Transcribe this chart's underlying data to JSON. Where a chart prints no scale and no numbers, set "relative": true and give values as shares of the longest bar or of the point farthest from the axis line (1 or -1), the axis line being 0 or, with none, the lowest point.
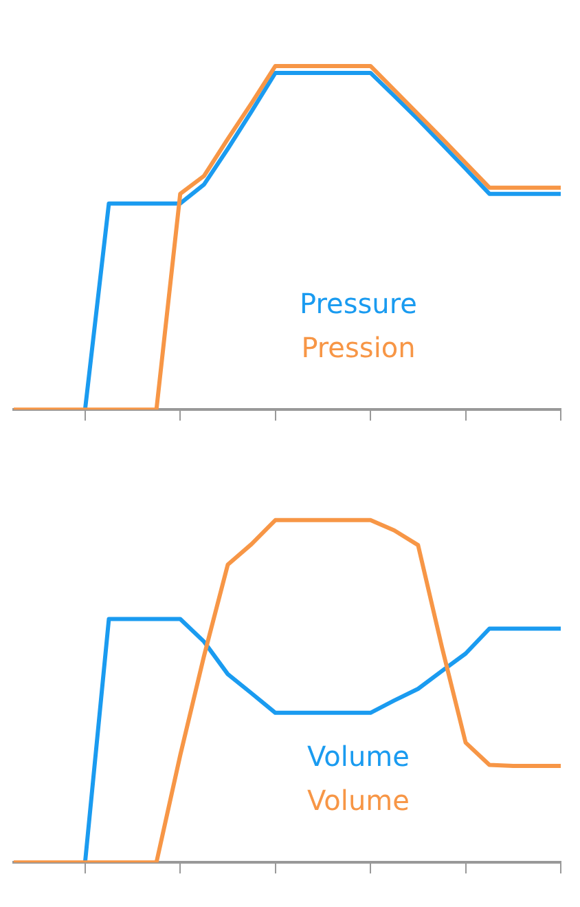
{
  "chart_data": [
    {
      "type": "line",
      "relative": true,
      "categories": [
        null,
        null,
        null,
        null,
        null,
        null,
        null,
        null,
        null,
        null,
        null,
        null,
        null,
        null,
        null,
        null,
        null,
        null,
        null,
        null,
        null,
        null,
        null,
        null
      ],
      "series": [
        {
          "name": "Pressure",
          "color": "#1a9bf0",
          "values": [
            null,
            null,
            null,
            0,
            0.6,
            0.6,
            0.6,
            0.6,
            0.655,
            0.759,
            0.868,
            0.98,
            0.98,
            0.98,
            0.98,
            0.98,
            0.913,
            0.845,
            0.773,
            0.701,
            0.628,
            0.628,
            0.628,
            0.628
          ]
        },
        {
          "name": "Pression",
          "color": "#f79646",
          "values": [
            0,
            0,
            0,
            0,
            0,
            0,
            0,
            0.628,
            0.68,
            0.788,
            0.892,
            1,
            1,
            1,
            1,
            1,
            0.93,
            0.86,
            0.79,
            0.718,
            0.646,
            0.646,
            0.646,
            0.646
          ]
        }
      ]
    },
    {
      "type": "line",
      "relative": true,
      "categories": [
        null,
        null,
        null,
        null,
        null,
        null,
        null,
        null,
        null,
        null,
        null,
        null,
        null,
        null,
        null,
        null,
        null,
        null,
        null,
        null,
        null,
        null,
        null,
        null
      ],
      "series": [
        {
          "name": "Volume",
          "color": "#1a9bf0",
          "values": [
            null,
            null,
            null,
            0,
            0.711,
            0.711,
            0.711,
            0.711,
            0.645,
            0.55,
            0.494,
            0.437,
            0.437,
            0.437,
            0.437,
            0.437,
            0.473,
            0.507,
            0.559,
            0.61,
            0.683,
            0.683,
            0.683,
            0.683
          ]
        },
        {
          "name": "Volume",
          "color": "#f79646",
          "values": [
            0,
            0,
            0,
            0,
            0,
            0,
            0,
            0.313,
            0.603,
            0.87,
            0.93,
            1,
            1,
            1,
            1,
            1,
            0.97,
            0.927,
            0.63,
            0.35,
            0.285,
            0.282,
            0.282,
            0.282
          ]
        }
      ]
    }
  ]
}
